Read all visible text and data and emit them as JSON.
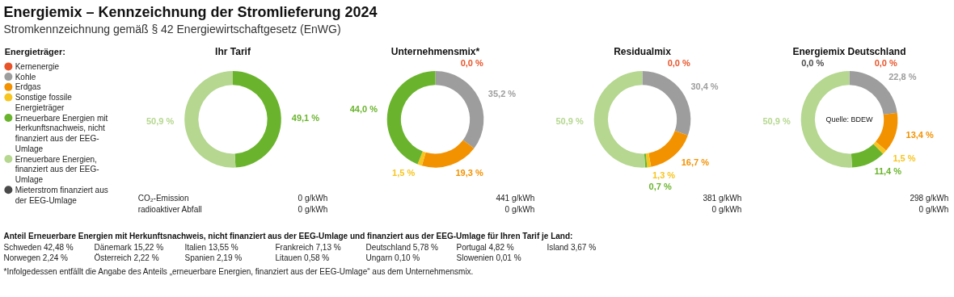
{
  "chart_data": [
    {
      "type": "other",
      "title": "Energiemix – Kennzeichnung der Stromlieferung 2024",
      "subtitle": "Stromkennzeichnung gemäß § 42 Energiewirtschaftgesetz (EnWG)"
    },
    {
      "type": "donut",
      "title": "Ihr Tarif",
      "legend": "left",
      "legend_title": "Energieträger:",
      "categories": [
        "Kernenergie",
        "Kohle",
        "Erdgas",
        "Sonstige fossile Energieträger",
        "Erneuerbare Energien mit Herkunftsnachweis, nicht finanziert aus der EEG-Umlage",
        "Erneuerbare Energien, finanziert aus der EEG-Umlage",
        "Mieterstrom finanziert aus der EEG-Umlage"
      ],
      "values": [
        0,
        0,
        0,
        0,
        49.1,
        50.9,
        0
      ],
      "value_labels": [
        null,
        null,
        null,
        null,
        "49,1 %",
        "50,9 %",
        null
      ],
      "colors": [
        "#e8542a",
        "#9d9d9d",
        "#f39200",
        "#f7c520",
        "#6ab42d",
        "#b5d78f",
        "#4a4a4a"
      ],
      "annotations": [
        "0 g/kWh",
        "0 g/kWh",
        "CO₂-Emission",
        "radioaktiver Abfall"
      ]
    },
    {
      "type": "donut",
      "title": "Unternehmensmix*",
      "values": [
        0.0,
        35.2,
        19.3,
        1.5,
        44.0,
        null,
        0
      ],
      "value_labels": [
        "0,0 %",
        "35,2 %",
        "19,3 %",
        "1,5 %",
        "44,0 %",
        null,
        null
      ],
      "colors": [
        "#e8542a",
        "#9d9d9d",
        "#f39200",
        "#f7c520",
        "#6ab42d",
        "#b5d78f",
        "#4a4a4a"
      ],
      "annotations": [
        "441 g/kWh",
        "0 g/kWh"
      ]
    },
    {
      "type": "donut",
      "title": "Residualmix",
      "values": [
        0.0,
        30.4,
        16.7,
        1.3,
        0.7,
        50.9,
        0
      ],
      "value_labels": [
        "0,0 %",
        "30,4 %",
        "16,7 %",
        "1,3 %",
        "0,7 %",
        "50,9 %",
        null
      ],
      "colors": [
        "#e8542a",
        "#9d9d9d",
        "#f39200",
        "#f7c520",
        "#6ab42d",
        "#b5d78f",
        "#4a4a4a"
      ],
      "annotations": [
        "381 g/kWh",
        "0 g/kWh"
      ]
    },
    {
      "type": "donut",
      "title": "Energiemix Deutschland",
      "values": [
        0.0,
        22.8,
        13.4,
        1.5,
        11.4,
        50.9,
        0.0
      ],
      "value_labels": [
        "0,0 %",
        "22,8 %",
        "13,4 %",
        "1,5 %",
        "11,4 %",
        "50,9 %",
        "0,0 %"
      ],
      "colors": [
        "#e8542a",
        "#9d9d9d",
        "#f39200",
        "#f7c520",
        "#6ab42d",
        "#b5d78f",
        "#4a4a4a"
      ],
      "annotations": [
        "298 g/kWh",
        "0 g/kWh",
        "Quelle: BDEW"
      ]
    },
    {
      "type": "other",
      "title": "Anteil Erneuerbare Energien mit Herkunftsnachweis, nicht finanziert aus der EEG-Umlage und finanziert aus der EEG-Umlage für Ihren Tarif je Land:",
      "annotations": [
        "Schweden 42,48 %",
        "Dänemark 15,22 %",
        "Italien 13,55 %",
        "Frankreich 7,13 %",
        "Deutschland 5,78 %",
        "Portugal 4,82 %",
        "Island 3,67 %",
        "Norwegen 2,24 %",
        "Österreich 2,22 %",
        "Spanien 2,19 %",
        "Litauen 0,58 %",
        "Ungarn 0,10 %",
        "Slowenien 0,01 %",
        "*Infolgedessen entfällt die Angabe des Anteils „erneuerbare Energien, finanziert aus der EEG-Umlage“ aus dem Unternehmensmix."
      ]
    }
  ]
}
